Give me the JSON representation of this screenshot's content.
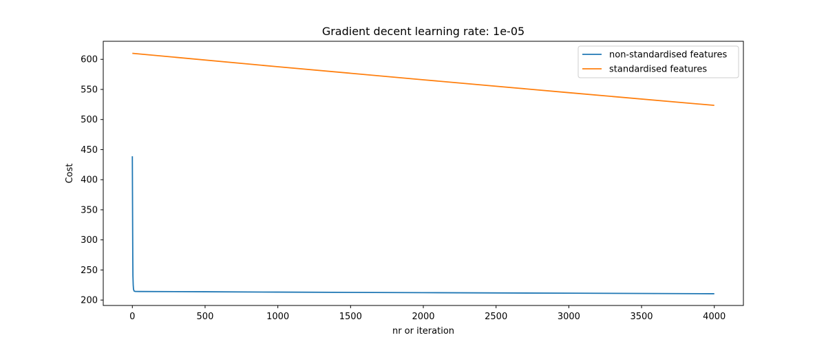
{
  "chart_data": {
    "type": "line",
    "title": "Gradient decent learning rate: 1e-05",
    "xlabel": "nr or iteration",
    "ylabel": "Cost",
    "xlim": [
      -200,
      4200
    ],
    "ylim": [
      191,
      630
    ],
    "xticks": [
      0,
      500,
      1000,
      1500,
      2000,
      2500,
      3000,
      3500,
      4000
    ],
    "xtick_labels": [
      "0",
      "500",
      "1000",
      "1500",
      "2000",
      "2500",
      "3000",
      "3500",
      "4000"
    ],
    "yticks": [
      200,
      250,
      300,
      350,
      400,
      450,
      500,
      550,
      600
    ],
    "ytick_labels": [
      "200",
      "250",
      "300",
      "350",
      "400",
      "450",
      "500",
      "550",
      "600"
    ],
    "grid": false,
    "legend_position": "top-right",
    "series": [
      {
        "name": "non-standardised features",
        "color": "#1f77b4",
        "x": [
          0,
          1,
          2,
          3,
          4,
          6,
          8,
          12,
          20,
          50,
          500,
          1000,
          2000,
          3000,
          4000
        ],
        "y": [
          439,
          380,
          320,
          270,
          240,
          225,
          218,
          215,
          214.3,
          214.2,
          213.8,
          213.2,
          212.3,
          211.4,
          210.5
        ]
      },
      {
        "name": "standardised features",
        "color": "#ff7f0e",
        "x": [
          0,
          1000,
          2000,
          3000,
          4000
        ],
        "y": [
          610,
          587.7,
          566.0,
          544.6,
          523.5
        ]
      }
    ]
  }
}
